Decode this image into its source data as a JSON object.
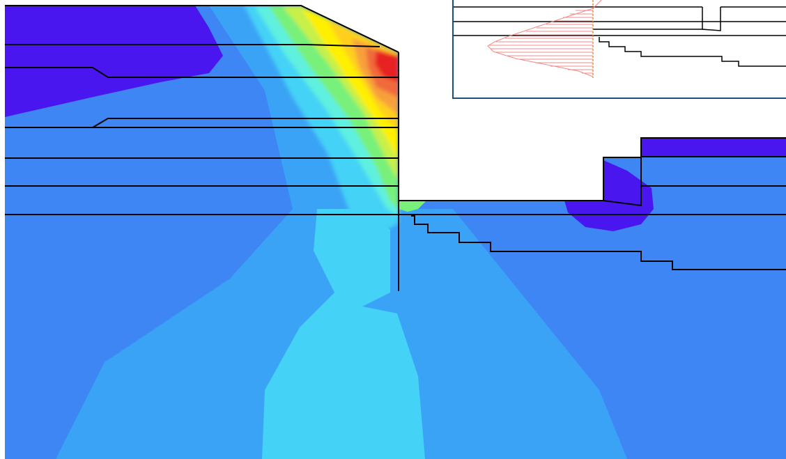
{
  "colors": {
    "background": "#ffffff",
    "outline": "#000000",
    "inset_frame": "#1f4e79",
    "inset_curve": "#f08a8a",
    "inset_axis": "#e07a1a",
    "contour_levels": [
      "#4a16f0",
      "#3f86f5",
      "#3aa3f6",
      "#44d2f7",
      "#5ef0e0",
      "#78f07a",
      "#c8f04a",
      "#fff000",
      "#ffcf1f",
      "#f7a03a",
      "#f06a3a",
      "#e82020"
    ]
  },
  "legend": []
}
